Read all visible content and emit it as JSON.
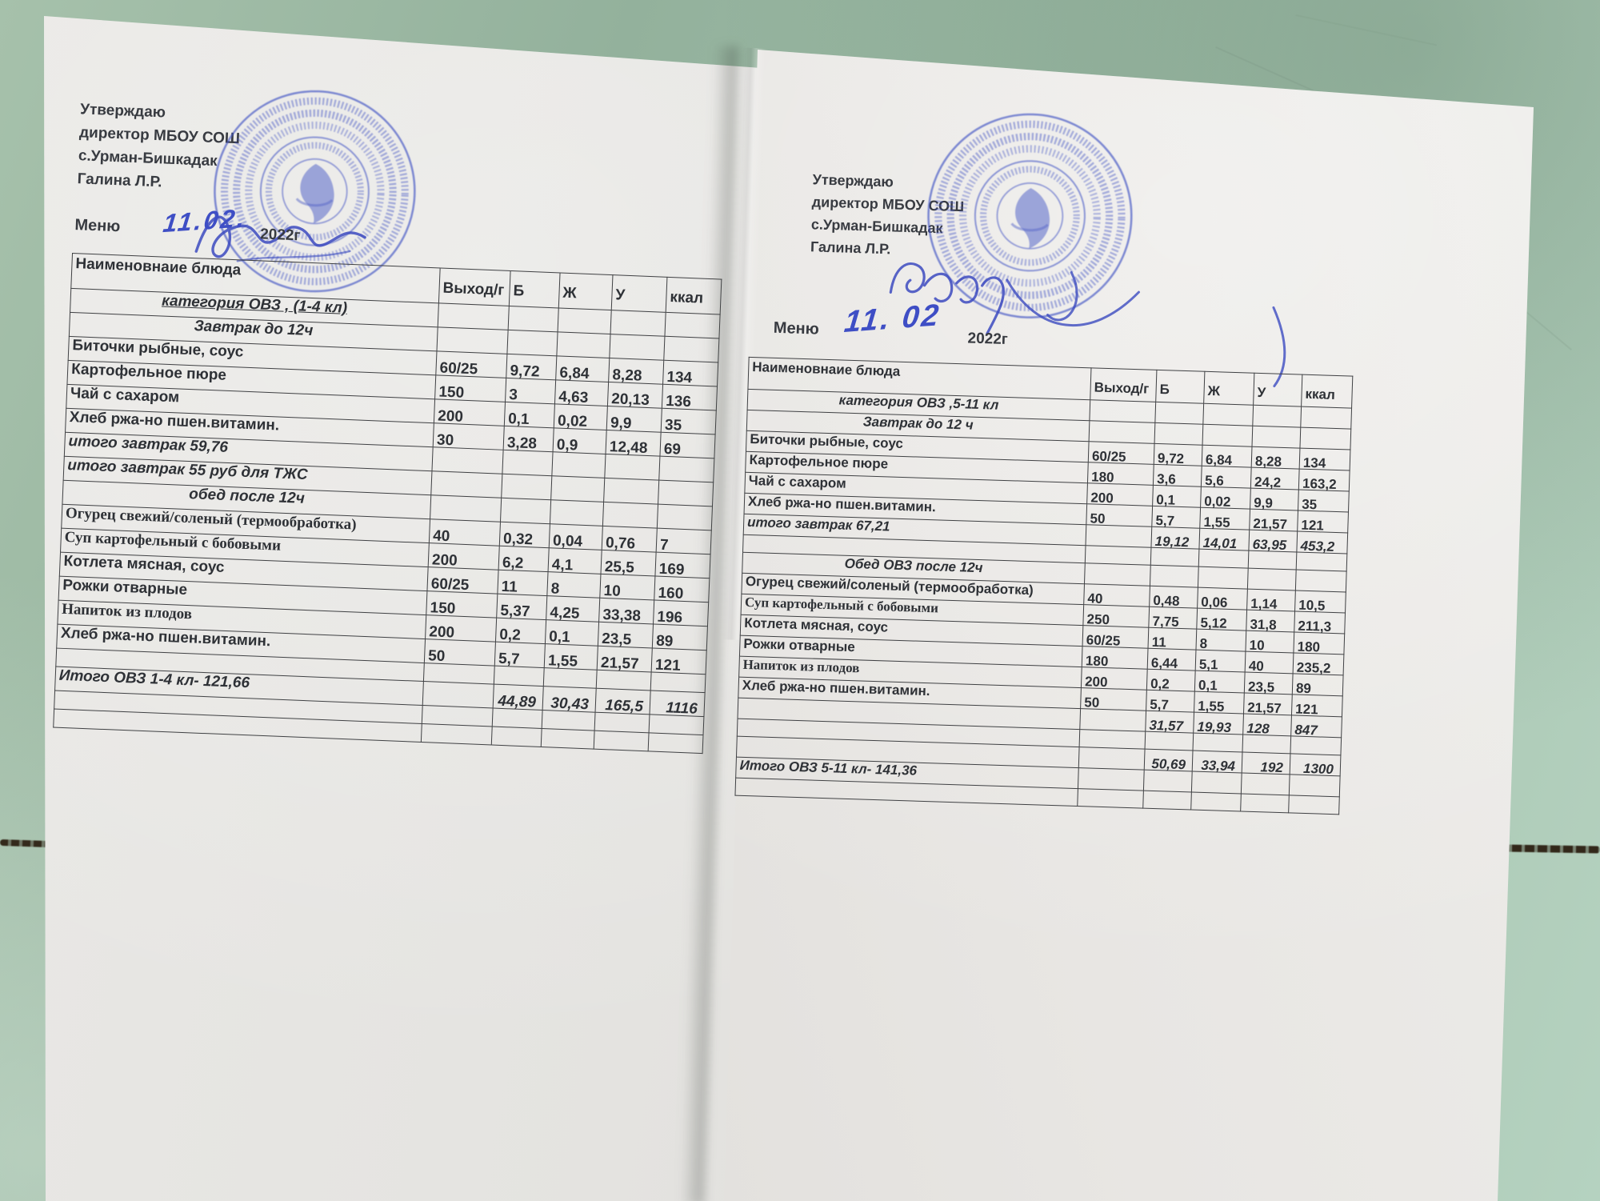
{
  "colors": {
    "background_green": "#9cbaa5",
    "paper": "#e6e4e1",
    "stamp_blue": "#4254c4",
    "ink_blue": "#3c4bc0",
    "print_dark": "#34373c",
    "grout_brown": "#362b1c"
  },
  "left_doc": {
    "approval": [
      "Утверждаю",
      "директор МБОУ СОШ",
      "с.Урман-Бишкадак",
      "Галина Л.Р."
    ],
    "menu_label": "Меню",
    "date_handwritten": "11.02.",
    "year_label": "2022г",
    "table": {
      "columns": [
        "Наименовнаие блюда",
        "Выход/г",
        "Б",
        "Ж",
        "У",
        "ккал"
      ],
      "rows": [
        {
          "t": "cat-u",
          "c": [
            "категория ОВЗ , (1-4 кл)",
            "",
            "",
            "",
            "",
            ""
          ]
        },
        {
          "t": "sec",
          "c": [
            "Завтрак до 12ч",
            "",
            "",
            "",
            "",
            ""
          ]
        },
        {
          "t": "item",
          "c": [
            "Биточки  рыбные, соус",
            "60/25",
            "9,72",
            "6,84",
            "8,28",
            "134"
          ]
        },
        {
          "t": "item",
          "c": [
            "Картофельное пюре",
            "150",
            "3",
            "4,63",
            "20,13",
            "136"
          ]
        },
        {
          "t": "item",
          "c": [
            "Чай  с сахаром",
            "200",
            "0,1",
            "0,02",
            "9,9",
            "35"
          ]
        },
        {
          "t": "item",
          "c": [
            "Хлеб ржа-но пшен.витамин.",
            "30",
            "3,28",
            "0,9",
            "12,48",
            "69"
          ]
        },
        {
          "t": "sub",
          "c": [
            "итого завтрак 59,76",
            "",
            "",
            "",
            "",
            ""
          ]
        },
        {
          "t": "sub",
          "c": [
            "итого завтрак 55 руб для ТЖС",
            "",
            "",
            "",
            "",
            ""
          ]
        },
        {
          "t": "sec",
          "c": [
            "обед после 12ч",
            "",
            "",
            "",
            "",
            ""
          ]
        },
        {
          "t": "item",
          "f": "serif",
          "c": [
            "Огурец свежий/соленый (термообработка)",
            "40",
            "0,32",
            "0,04",
            "0,76",
            "7"
          ]
        },
        {
          "t": "item",
          "f": "serif",
          "c": [
            "Суп картофельный с бобовыми",
            "200",
            "6,2",
            "4,1",
            "25,5",
            "169"
          ]
        },
        {
          "t": "item",
          "c": [
            "Котлета  мясная, соус",
            "60/25",
            "11",
            "8",
            "10",
            "160"
          ]
        },
        {
          "t": "item",
          "c": [
            "Рожки отварные",
            "150",
            "5,37",
            "4,25",
            "33,38",
            "196"
          ]
        },
        {
          "t": "item",
          "f": "serif",
          "c": [
            "Напиток из плодов",
            "200",
            "0,2",
            "0,1",
            "23,5",
            "89"
          ]
        },
        {
          "t": "item",
          "c": [
            "Хлеб ржа-но пшен.витамин.",
            "50",
            "5,7",
            "1,55",
            "21,57",
            "121"
          ]
        },
        {
          "t": "blank",
          "c": [
            "",
            "",
            "",
            "",
            "",
            ""
          ]
        },
        {
          "t": "tot",
          "c": [
            "Итого  ОВЗ 1-4 кл- 121,66",
            "",
            "44,89",
            "30,43",
            "165,5",
            "1116"
          ]
        },
        {
          "t": "blank",
          "c": [
            "",
            "",
            "",
            "",
            "",
            ""
          ]
        },
        {
          "t": "blank",
          "c": [
            "",
            "",
            "",
            "",
            "",
            ""
          ]
        }
      ]
    }
  },
  "right_doc": {
    "approval": [
      "Утверждаю",
      "директор МБОУ СОШ",
      "с.Урман-Бишкадак",
      "Галина Л.Р."
    ],
    "menu_label": "Меню",
    "date_handwritten": "11. 02",
    "year_label": "2022г",
    "table": {
      "columns": [
        "Наименовнаие блюда",
        "Выход/г",
        "Б",
        "Ж",
        "У",
        "ккал"
      ],
      "rows": [
        {
          "t": "cat",
          "c": [
            "категория ОВЗ ,5-11 кл",
            "",
            "",
            "",
            "",
            ""
          ]
        },
        {
          "t": "sec",
          "c": [
            "Завтрак до 12 ч",
            "",
            "",
            "",
            "",
            ""
          ]
        },
        {
          "t": "item",
          "c": [
            "Биточки  рыбные, соус",
            "60/25",
            "9,72",
            "6,84",
            "8,28",
            "134"
          ]
        },
        {
          "t": "item",
          "c": [
            "Картофельное пюре",
            "180",
            "3,6",
            "5,6",
            "24,2",
            "163,2"
          ]
        },
        {
          "t": "item",
          "c": [
            "Чай  с сахаром",
            "200",
            "0,1",
            "0,02",
            "9,9",
            "35"
          ]
        },
        {
          "t": "item",
          "c": [
            "Хлеб ржа-но пшен.витамин.",
            "50",
            "5,7",
            "1,55",
            "21,57",
            "121"
          ]
        },
        {
          "t": "sub",
          "c": [
            "итого завтрак 67,21",
            "",
            "19,12",
            "14,01",
            "63,95",
            "453,2"
          ]
        },
        {
          "t": "blank",
          "c": [
            "",
            "",
            "",
            "",
            "",
            ""
          ]
        },
        {
          "t": "sec",
          "c": [
            "Обед  ОВЗ после 12ч",
            "",
            "",
            "",
            "",
            ""
          ]
        },
        {
          "t": "item",
          "c": [
            "Огурец свежий/соленый (термообработка)",
            "40",
            "0,48",
            "0,06",
            "1,14",
            "10,5"
          ]
        },
        {
          "t": "item",
          "f": "serif",
          "c": [
            "Суп картофельный с бобовыми",
            "250",
            "7,75",
            "5,12",
            "31,8",
            "211,3"
          ]
        },
        {
          "t": "item",
          "c": [
            "Котлета  мясная, соус",
            "60/25",
            "11",
            "8",
            "10",
            "180"
          ]
        },
        {
          "t": "item",
          "c": [
            "Рожки отварные",
            "180",
            "6,44",
            "5,1",
            "40",
            "235,2"
          ]
        },
        {
          "t": "item",
          "f": "serif",
          "c": [
            "Напиток из плодов",
            "200",
            "0,2",
            "0,1",
            "23,5",
            "89"
          ]
        },
        {
          "t": "item",
          "c": [
            "Хлеб ржа-но пшен.витамин.",
            "50",
            "5,7",
            "1,55",
            "21,57",
            "121"
          ]
        },
        {
          "t": "sub",
          "c": [
            "",
            "",
            "31,57",
            "19,93",
            "128",
            "847"
          ]
        },
        {
          "t": "blank",
          "c": [
            "",
            "",
            "",
            "",
            "",
            ""
          ]
        },
        {
          "t": "tot",
          "c": [
            "",
            "",
            "50,69",
            "33,94",
            "192",
            "1300"
          ]
        },
        {
          "t": "tot-name",
          "c": [
            "Итого  ОВЗ 5-11 кл- 141,36",
            "",
            "",
            "",
            "",
            ""
          ]
        },
        {
          "t": "blank",
          "c": [
            "",
            "",
            "",
            "",
            "",
            ""
          ]
        }
      ]
    }
  }
}
